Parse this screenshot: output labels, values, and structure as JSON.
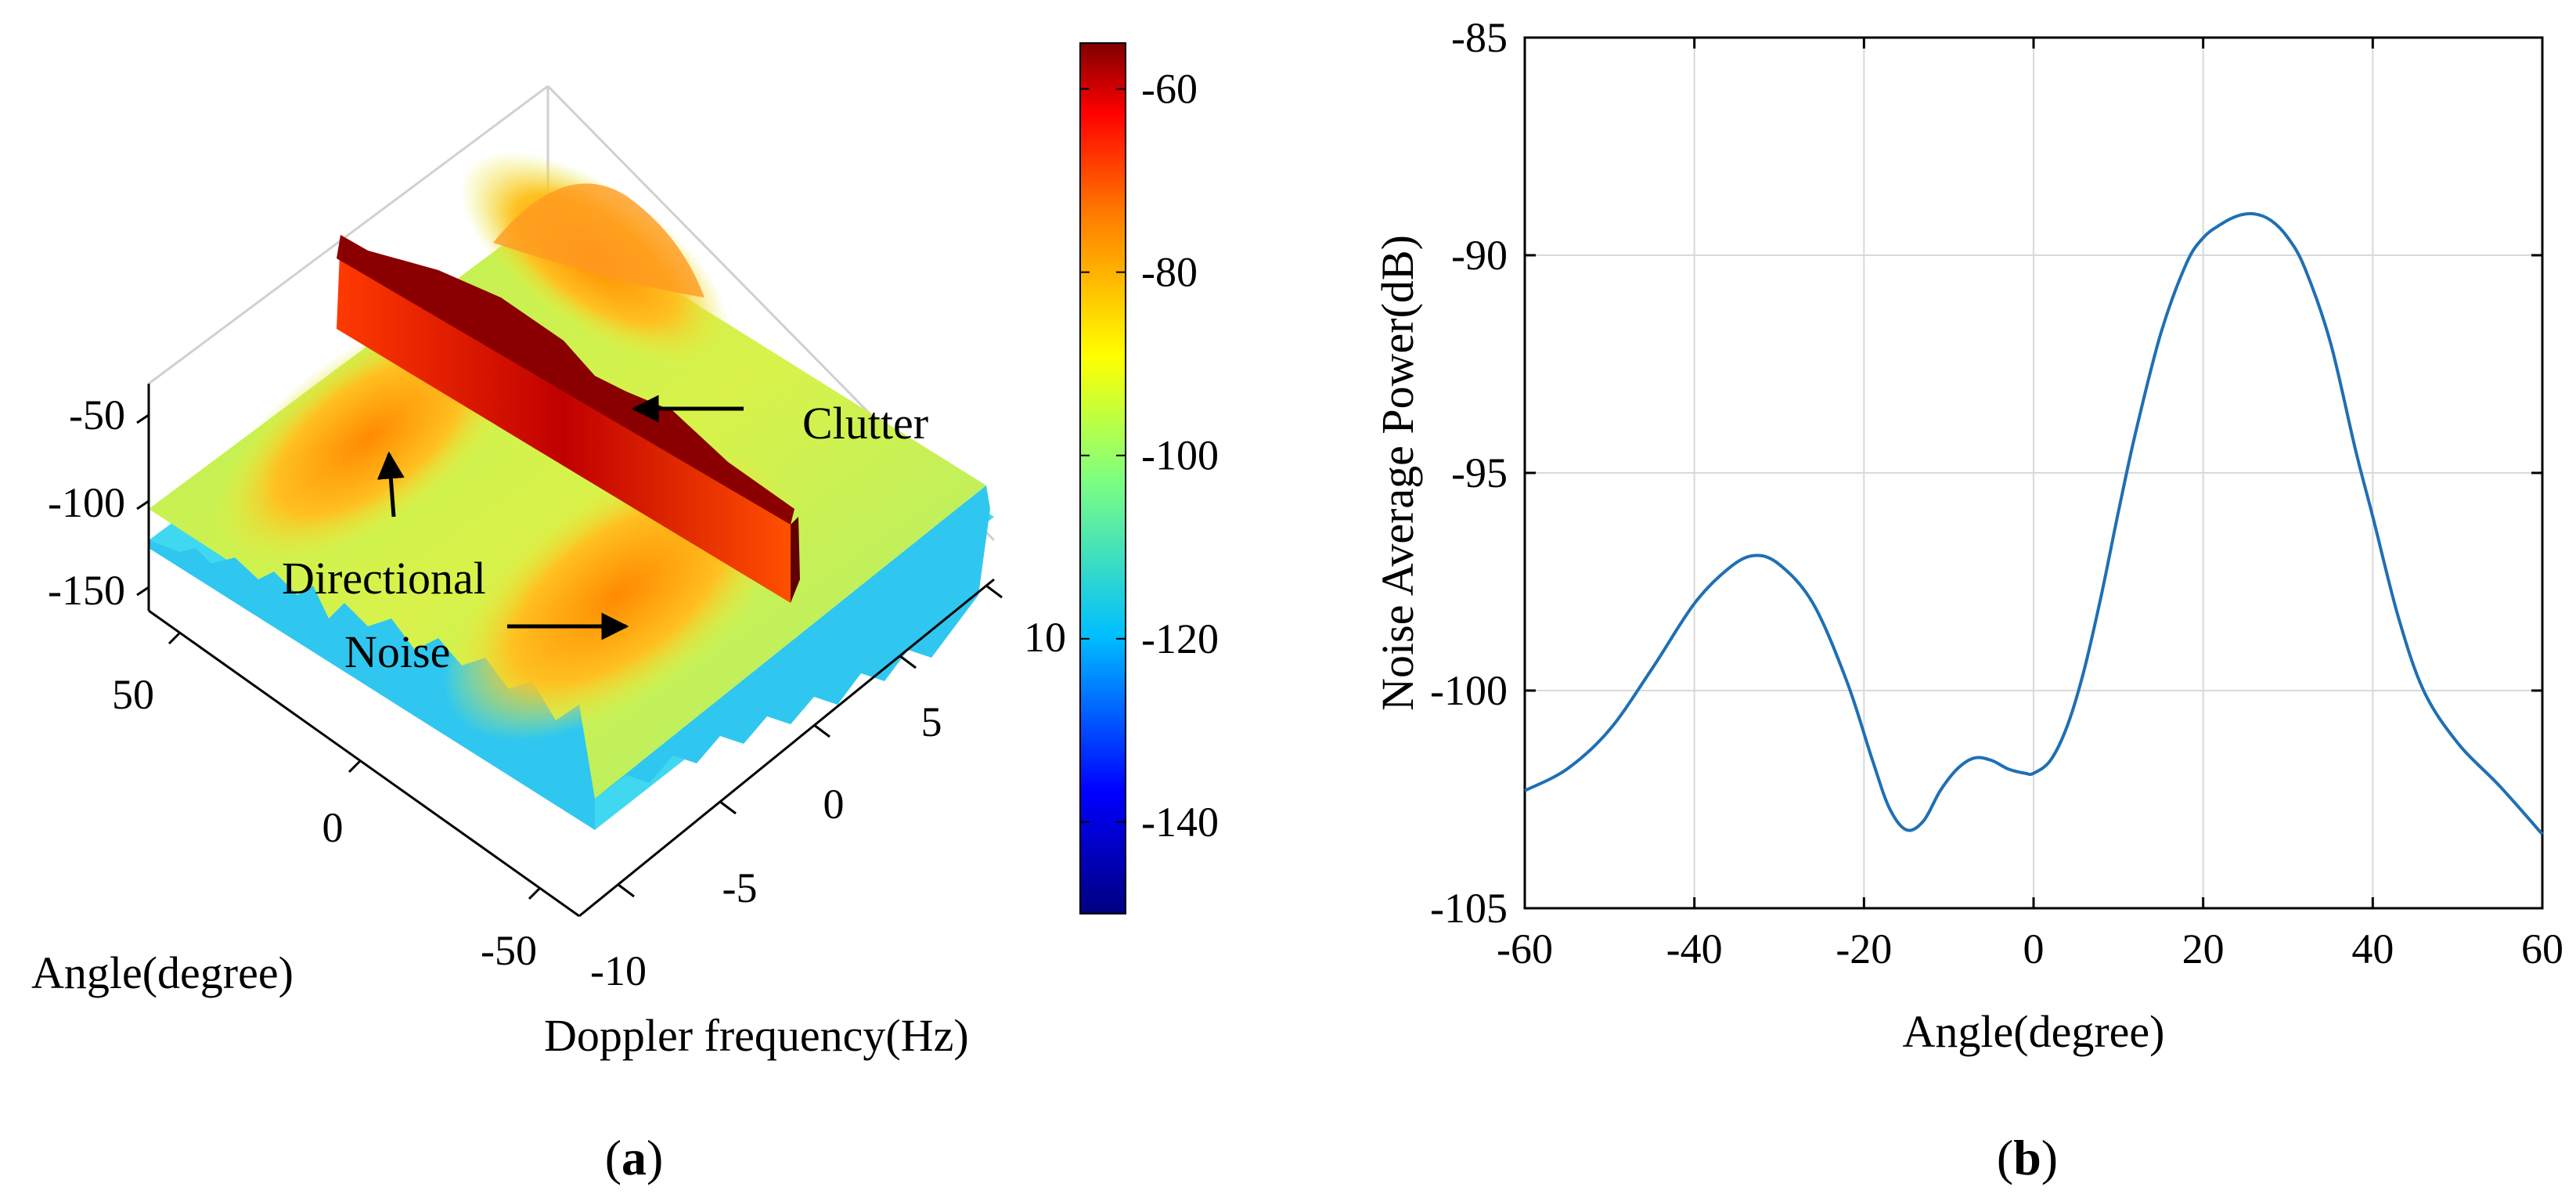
{
  "chart_data": [
    {
      "id": "a",
      "type": "surface3d",
      "caption_letter": "a",
      "xlabel": "Angle(degree)",
      "ylabel": "Doppler frequency(Hz)",
      "z_ticks": [
        "-50",
        "-100",
        "-150"
      ],
      "angle_ticks": [
        "50",
        "0",
        "-50"
      ],
      "doppler_ticks": [
        "-10",
        "-5",
        "0",
        "5",
        "10"
      ],
      "colorbar_ticks": [
        "-60",
        "-80",
        "-100",
        "-120",
        "-140"
      ],
      "colorbar_range": [
        -150,
        -55
      ],
      "colorbar_colors": [
        "#00007f",
        "#0000ff",
        "#00bfff",
        "#7fff7f",
        "#ffff00",
        "#ff7f00",
        "#ff0000",
        "#7f0000"
      ],
      "annotations": {
        "clutter": "Clutter",
        "directional_line1": "Directional",
        "directional_line2": "Noise"
      }
    },
    {
      "id": "b",
      "type": "line",
      "caption_letter": "b",
      "xlabel": "Angle(degree)",
      "ylabel": "Noise Average Power(dB)",
      "xlim": [
        -60,
        60
      ],
      "ylim": [
        -105,
        -85
      ],
      "xticks": [
        -60,
        -40,
        -20,
        0,
        20,
        40,
        60
      ],
      "yticks": [
        -85,
        -90,
        -95,
        -100,
        -105
      ],
      "grid": true,
      "line_color": "#1f6fb4",
      "x": [
        -60,
        -55,
        -50,
        -45,
        -40,
        -36,
        -33,
        -30,
        -26,
        -22,
        -19,
        -17,
        -15,
        -13,
        -11,
        -9,
        -7,
        -5,
        -3,
        -1,
        0,
        2,
        4,
        6,
        8,
        10,
        12,
        15,
        18,
        20,
        22,
        24,
        26,
        28,
        30,
        32,
        35,
        38,
        40,
        43,
        46,
        50,
        55,
        60
      ],
      "y": [
        -102.3,
        -101.8,
        -100.9,
        -99.5,
        -98.0,
        -97.2,
        -96.9,
        -97.1,
        -98.0,
        -99.8,
        -101.6,
        -102.7,
        -103.2,
        -103.0,
        -102.3,
        -101.8,
        -101.55,
        -101.6,
        -101.8,
        -101.9,
        -101.9,
        -101.6,
        -100.8,
        -99.5,
        -97.8,
        -95.9,
        -94.1,
        -91.8,
        -90.2,
        -89.6,
        -89.3,
        -89.1,
        -89.05,
        -89.2,
        -89.6,
        -90.3,
        -92.0,
        -94.5,
        -96.0,
        -98.3,
        -100.0,
        -101.2,
        -102.2,
        -103.3
      ]
    }
  ]
}
